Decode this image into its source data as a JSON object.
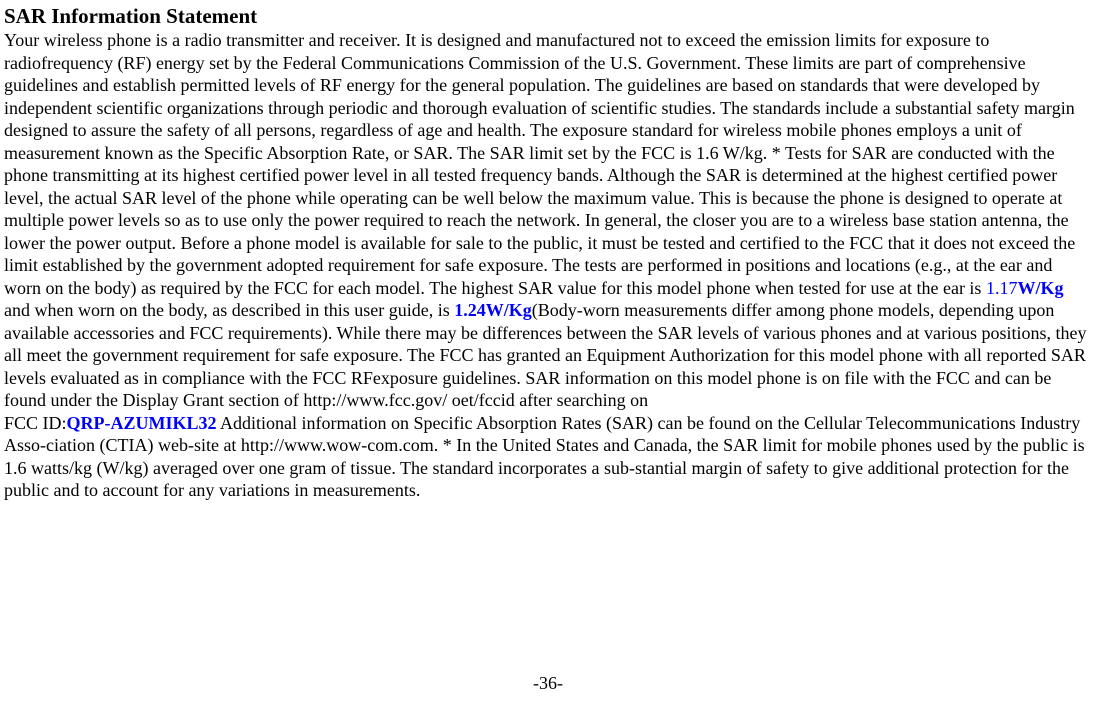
{
  "document": {
    "title": "SAR Information Statement",
    "body_part1": "Your wireless phone is a radio transmitter and receiver. It is designed and manufactured not to exceed the emission limits for exposure to radiofrequency (RF) energy set by the Federal Communications Commission of the U.S. Government. These limits are part of comprehensive guidelines and establish permitted levels of RF energy for the general population. The guidelines are based on standards that were developed by independent scientific organizations through periodic and thorough evaluation of scientific studies. The standards include a substantial safety margin designed to assure the safety of all persons, regardless of age and health. The exposure standard for wireless mobile phones employs a unit of measurement known as the Specific Absorption Rate, or SAR. The SAR limit set by the FCC is 1.6 W/kg. * Tests for SAR are conducted with the phone transmitting at its highest certified power level in all tested frequency bands. Although the SAR is determined at the highest certified power level, the actual SAR level of the phone while operating can be well below the maximum value. This is because the phone is designed to operate at multiple power levels so as to use only the power required to reach the network. In general, the closer you are to a wireless base station antenna, the lower the power output. Before a phone model is available for sale to the public, it must be tested and certified to the FCC that it does not exceed the limit established by the government adopted requirement for safe exposure. The tests are performed in positions and locations (e.g., at the ear and worn on the body) as required by the FCC for each model. The highest SAR value for this model phone when tested for use at the ear is ",
    "sar_ear_value": "1.17",
    "sar_ear_unit": "W/Kg",
    "body_part2": " and when worn on the body, as described in this user guide, is ",
    "sar_body_value": "1.24W/Kg",
    "body_part3": "(Body-worn measurements differ among phone models, depending upon available accessories and FCC requirements). While there may be differences between the SAR levels of various phones and at various positions, they all meet the government requirement for safe exposure. The FCC has granted an Equipment Authorization for this model phone with all reported SAR levels evaluated as in compliance with the FCC RFexposure guidelines. SAR information on this model phone is on file with the FCC and can be found under the Display Grant section of http://www.fcc.gov/ oet/fccid after searching on",
    "fcc_id_label": "FCC ID:",
    "fcc_id_value": "QRP-AZUMIKL32",
    "body_part4": " Additional information on Specific Absorption Rates (SAR) can be found on the Cellular Telecommunications Industry Asso-ciation (CTIA) web-site at http://www.wow-com.com. * In the United States and Canada, the SAR limit for mobile phones used by the public is 1.6 watts/kg (W/kg) averaged over one gram of tissue. The standard incorporates a sub-stantial margin of safety to give additional protection for the public and to account for any variations in measurements.",
    "page_number": "-36-"
  },
  "styling": {
    "title_fontsize": 21,
    "body_fontsize": 18,
    "page_number_fontsize": 18,
    "font_family": "Times New Roman",
    "background_color": "#ffffff",
    "text_color": "#000000",
    "highlight_color": "#0000ff",
    "line_height": 1.25
  }
}
